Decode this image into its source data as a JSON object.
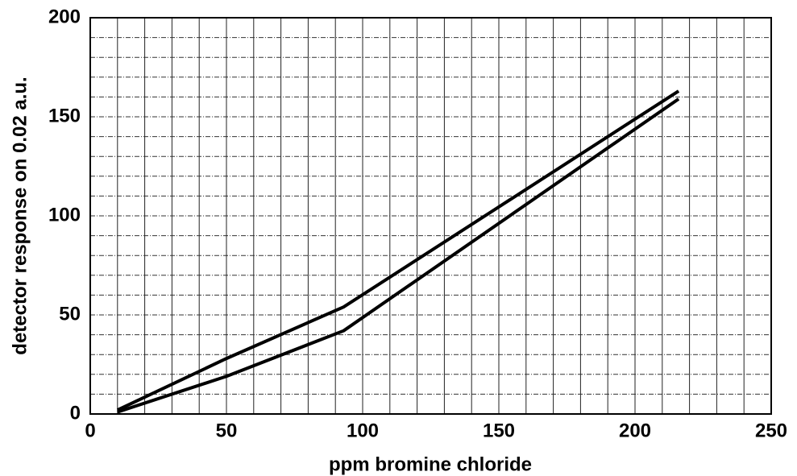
{
  "chart_data": {
    "type": "line",
    "xlabel": "ppm bromine chloride",
    "ylabel": "detector response on 0.02 a.u.",
    "x": [
      10,
      50,
      93,
      216
    ],
    "series": [
      {
        "color": "#000000",
        "values": [
          2,
          28,
          54,
          163
        ]
      },
      {
        "color": "#000000",
        "values": [
          1,
          19,
          42,
          159
        ]
      }
    ],
    "xlim": [
      0,
      250
    ],
    "ylim": [
      0,
      200
    ],
    "xticks": [
      0,
      50,
      100,
      150,
      200,
      250
    ],
    "yticks": [
      0,
      50,
      100,
      150,
      200
    ],
    "x_minor_ticks": [
      10,
      20,
      30,
      40,
      60,
      70,
      80,
      90,
      110,
      120,
      130,
      140,
      160,
      170,
      180,
      190,
      210,
      220,
      230,
      240
    ],
    "y_minor_ticks": [
      10,
      20,
      30,
      40,
      60,
      70,
      80,
      90,
      110,
      120,
      130,
      140,
      160,
      170,
      180,
      190
    ],
    "grid": true
  }
}
